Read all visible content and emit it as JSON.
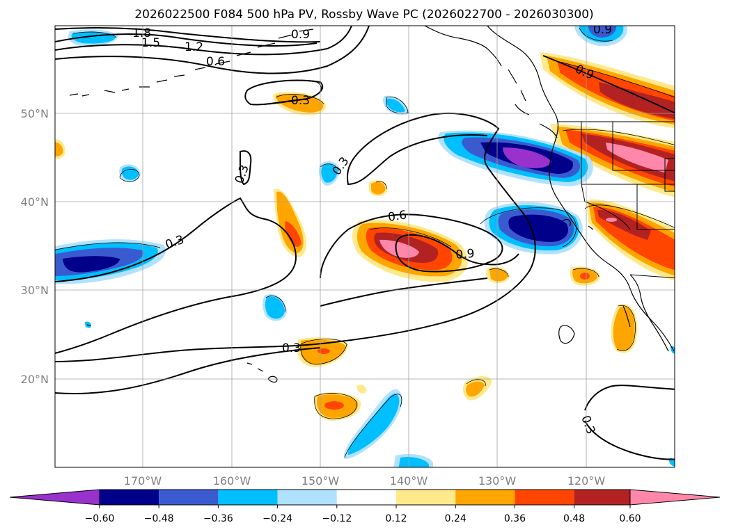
{
  "title": "2026022500 F084 500 hPa PV, Rossby Wave PC (2026022700 - 2026030300)",
  "lat_labels": [
    "50°N",
    "40°N",
    "30°N",
    "20°N"
  ],
  "lon_labels": [
    "170°W",
    "160°W",
    "150°W",
    "140°W",
    "130°W",
    "120°W"
  ],
  "contour_labels": [
    "1.8",
    "1.5",
    "1.2",
    "0.9",
    "0.6",
    "0.3",
    "0.3",
    "0.3",
    "0.3",
    "0.6",
    "0.9",
    "0.9",
    "0.9",
    "0.3",
    "0.3"
  ],
  "colorbar": {
    "ticks": [
      "−0.60",
      "−0.48",
      "−0.36",
      "−0.24",
      "−0.12",
      "0.12",
      "0.24",
      "0.36",
      "0.48",
      "0.60"
    ],
    "colors": [
      "#9932cc",
      "#00008b",
      "#3a5bd0",
      "#00bfff",
      "#b0e2ff",
      "#ffffff",
      "#ffe98a",
      "#ffa500",
      "#ff4500",
      "#b22222",
      "#ff88aa"
    ]
  }
}
